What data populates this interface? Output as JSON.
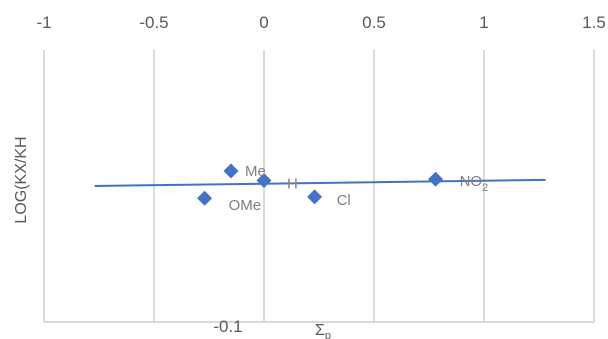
{
  "chart_data": {
    "type": "scatter",
    "xlabel": "Σp",
    "ylabel": "LOG(KX/KH",
    "xlim": [
      -1,
      1.5
    ],
    "x_ticks": [
      "-1",
      "-0.5",
      "0",
      "0.5",
      "1",
      "1.5"
    ],
    "x_tick_values": [
      -1,
      -0.5,
      0,
      0.5,
      1,
      1.5
    ],
    "ylim": [
      -0.1,
      0.1
    ],
    "y_tick_label": "-0.1",
    "x_axis_position": "top",
    "grid": "vertical",
    "legend": "none",
    "points": [
      {
        "label": "Me",
        "x": -0.15,
        "y": 0.011
      },
      {
        "label": "H",
        "x": 0.0,
        "y": 0.004
      },
      {
        "label": "OMe",
        "x": -0.27,
        "y": -0.009
      },
      {
        "label": "Cl",
        "x": 0.23,
        "y": -0.008
      },
      {
        "label": "NO2",
        "x": 0.78,
        "y": 0.005
      }
    ],
    "trendline": {
      "x": [
        -0.77,
        1.28
      ],
      "y": [
        0.0,
        0.0045
      ]
    },
    "colors": {
      "marker": "#4472c4",
      "line": "#4472c4"
    }
  }
}
